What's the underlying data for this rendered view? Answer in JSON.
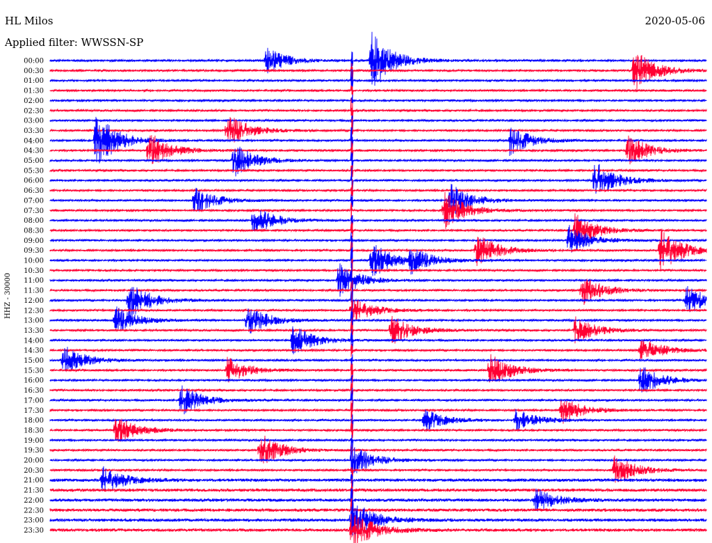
{
  "header": {
    "station": "HL Milos",
    "filter": "Applied filter: WWSSN-SP",
    "date": "2020-05-06"
  },
  "chart_data": {
    "type": "line",
    "title": "HL Milos",
    "subtitle": "Applied filter: WWSSN-SP",
    "date": "2020-05-06",
    "ylabel": "HHZ - 30000",
    "xlabel": "",
    "row_labels": [
      "00:00",
      "00:30",
      "01:00",
      "01:30",
      "02:00",
      "02:30",
      "03:00",
      "03:30",
      "04:00",
      "04:30",
      "05:00",
      "05:30",
      "06:00",
      "06:30",
      "07:00",
      "07:30",
      "08:00",
      "08:30",
      "09:00",
      "09:30",
      "10:00",
      "10:30",
      "11:00",
      "11:30",
      "12:00",
      "12:30",
      "13:00",
      "13:30",
      "14:00",
      "14:30",
      "15:00",
      "15:30",
      "16:00",
      "16:30",
      "17:00",
      "17:30",
      "18:00",
      "18:30",
      "19:00",
      "19:30",
      "20:00",
      "20:30",
      "21:00",
      "21:30",
      "22:00",
      "22:30",
      "23:00",
      "23:30"
    ],
    "colors": {
      "even_rows": "#0000ff",
      "odd_rows": "#ff0033"
    },
    "background_noise_level": 0.35,
    "event_bursts": [
      {
        "row": 0,
        "x": 0.33,
        "amp": 1.4
      },
      {
        "row": 0,
        "x": 0.49,
        "amp": 3.0
      },
      {
        "row": 1,
        "x": 0.89,
        "amp": 2.2
      },
      {
        "row": 7,
        "x": 0.27,
        "amp": 1.8
      },
      {
        "row": 8,
        "x": 0.07,
        "amp": 3.0
      },
      {
        "row": 8,
        "x": 0.7,
        "amp": 1.6
      },
      {
        "row": 9,
        "x": 0.15,
        "amp": 2.0
      },
      {
        "row": 9,
        "x": 0.88,
        "amp": 1.6
      },
      {
        "row": 10,
        "x": 0.28,
        "amp": 1.8
      },
      {
        "row": 12,
        "x": 0.83,
        "amp": 2.0
      },
      {
        "row": 14,
        "x": 0.22,
        "amp": 1.4
      },
      {
        "row": 14,
        "x": 0.61,
        "amp": 1.8
      },
      {
        "row": 15,
        "x": 0.6,
        "amp": 2.0
      },
      {
        "row": 16,
        "x": 0.31,
        "amp": 1.6
      },
      {
        "row": 17,
        "x": 0.8,
        "amp": 1.8
      },
      {
        "row": 18,
        "x": 0.79,
        "amp": 1.6
      },
      {
        "row": 19,
        "x": 0.65,
        "amp": 1.8
      },
      {
        "row": 19,
        "x": 0.93,
        "amp": 2.4
      },
      {
        "row": 20,
        "x": 0.49,
        "amp": 2.0
      },
      {
        "row": 20,
        "x": 0.55,
        "amp": 1.2
      },
      {
        "row": 22,
        "x": 0.44,
        "amp": 1.8
      },
      {
        "row": 23,
        "x": 0.81,
        "amp": 1.6
      },
      {
        "row": 24,
        "x": 0.12,
        "amp": 2.0
      },
      {
        "row": 24,
        "x": 0.97,
        "amp": 1.6
      },
      {
        "row": 25,
        "x": 0.46,
        "amp": 1.4
      },
      {
        "row": 26,
        "x": 0.3,
        "amp": 1.6
      },
      {
        "row": 26,
        "x": 0.1,
        "amp": 1.4
      },
      {
        "row": 27,
        "x": 0.52,
        "amp": 1.6
      },
      {
        "row": 27,
        "x": 0.8,
        "amp": 1.4
      },
      {
        "row": 28,
        "x": 0.37,
        "amp": 1.6
      },
      {
        "row": 29,
        "x": 0.9,
        "amp": 1.4
      },
      {
        "row": 30,
        "x": 0.02,
        "amp": 1.6
      },
      {
        "row": 31,
        "x": 0.27,
        "amp": 1.4
      },
      {
        "row": 31,
        "x": 0.67,
        "amp": 1.8
      },
      {
        "row": 32,
        "x": 0.9,
        "amp": 1.6
      },
      {
        "row": 34,
        "x": 0.2,
        "amp": 1.6
      },
      {
        "row": 35,
        "x": 0.78,
        "amp": 1.4
      },
      {
        "row": 36,
        "x": 0.57,
        "amp": 1.2
      },
      {
        "row": 36,
        "x": 0.71,
        "amp": 1.2
      },
      {
        "row": 37,
        "x": 0.1,
        "amp": 1.6
      },
      {
        "row": 39,
        "x": 0.32,
        "amp": 1.8
      },
      {
        "row": 40,
        "x": 0.46,
        "amp": 1.6
      },
      {
        "row": 41,
        "x": 0.86,
        "amp": 1.6
      },
      {
        "row": 42,
        "x": 0.08,
        "amp": 1.4
      },
      {
        "row": 44,
        "x": 0.74,
        "amp": 1.2
      },
      {
        "row": 46,
        "x": 0.46,
        "amp": 2.2
      },
      {
        "row": 47,
        "x": 0.46,
        "amp": 2.0
      }
    ],
    "tall_spike_x": 0.46
  }
}
